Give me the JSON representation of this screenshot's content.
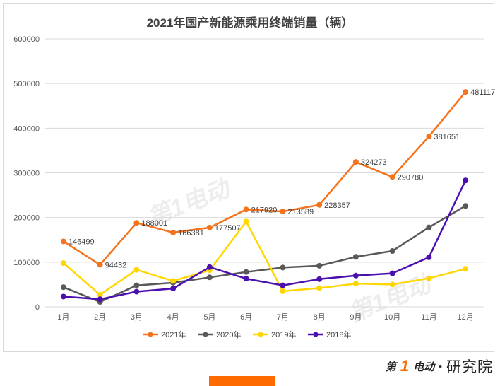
{
  "chart_data": {
    "type": "line",
    "title": "2021年国产新能源乘用终端销量（辆）",
    "categories": [
      "1月",
      "2月",
      "3月",
      "4月",
      "5月",
      "6月",
      "7月",
      "8月",
      "9月",
      "10月",
      "11月",
      "12月"
    ],
    "ylim": [
      0,
      600000
    ],
    "yticks": [
      0,
      100000,
      200000,
      300000,
      400000,
      500000,
      600000
    ],
    "grid": true,
    "legend_position": "bottom",
    "series": [
      {
        "name": "2021年",
        "color": "#f4731c",
        "labeled": true,
        "values": [
          146499,
          94432,
          188001,
          166381,
          177507,
          217920,
          213589,
          228357,
          324273,
          290780,
          381651,
          481117
        ]
      },
      {
        "name": "2020年",
        "color": "#595959",
        "labeled": false,
        "values": [
          44000,
          11000,
          48000,
          54000,
          66000,
          78000,
          88000,
          92000,
          112000,
          125000,
          178000,
          226000
        ]
      },
      {
        "name": "2019年",
        "color": "#ffd700",
        "labeled": false,
        "values": [
          98000,
          27000,
          83000,
          58000,
          82000,
          191000,
          35000,
          42000,
          52000,
          50000,
          64000,
          85000
        ]
      },
      {
        "name": "2018年",
        "color": "#4b0fb0",
        "labeled": false,
        "values": [
          23000,
          17000,
          34000,
          41000,
          89000,
          63000,
          48000,
          62000,
          70000,
          75000,
          111000,
          283000
        ]
      }
    ]
  },
  "watermark": {
    "brand": "第1电动"
  },
  "footer": {
    "logo_brand": "第",
    "logo_one": "1",
    "logo_brand2": "电动",
    "logo_dot": "•",
    "logo_text": "研究院"
  }
}
